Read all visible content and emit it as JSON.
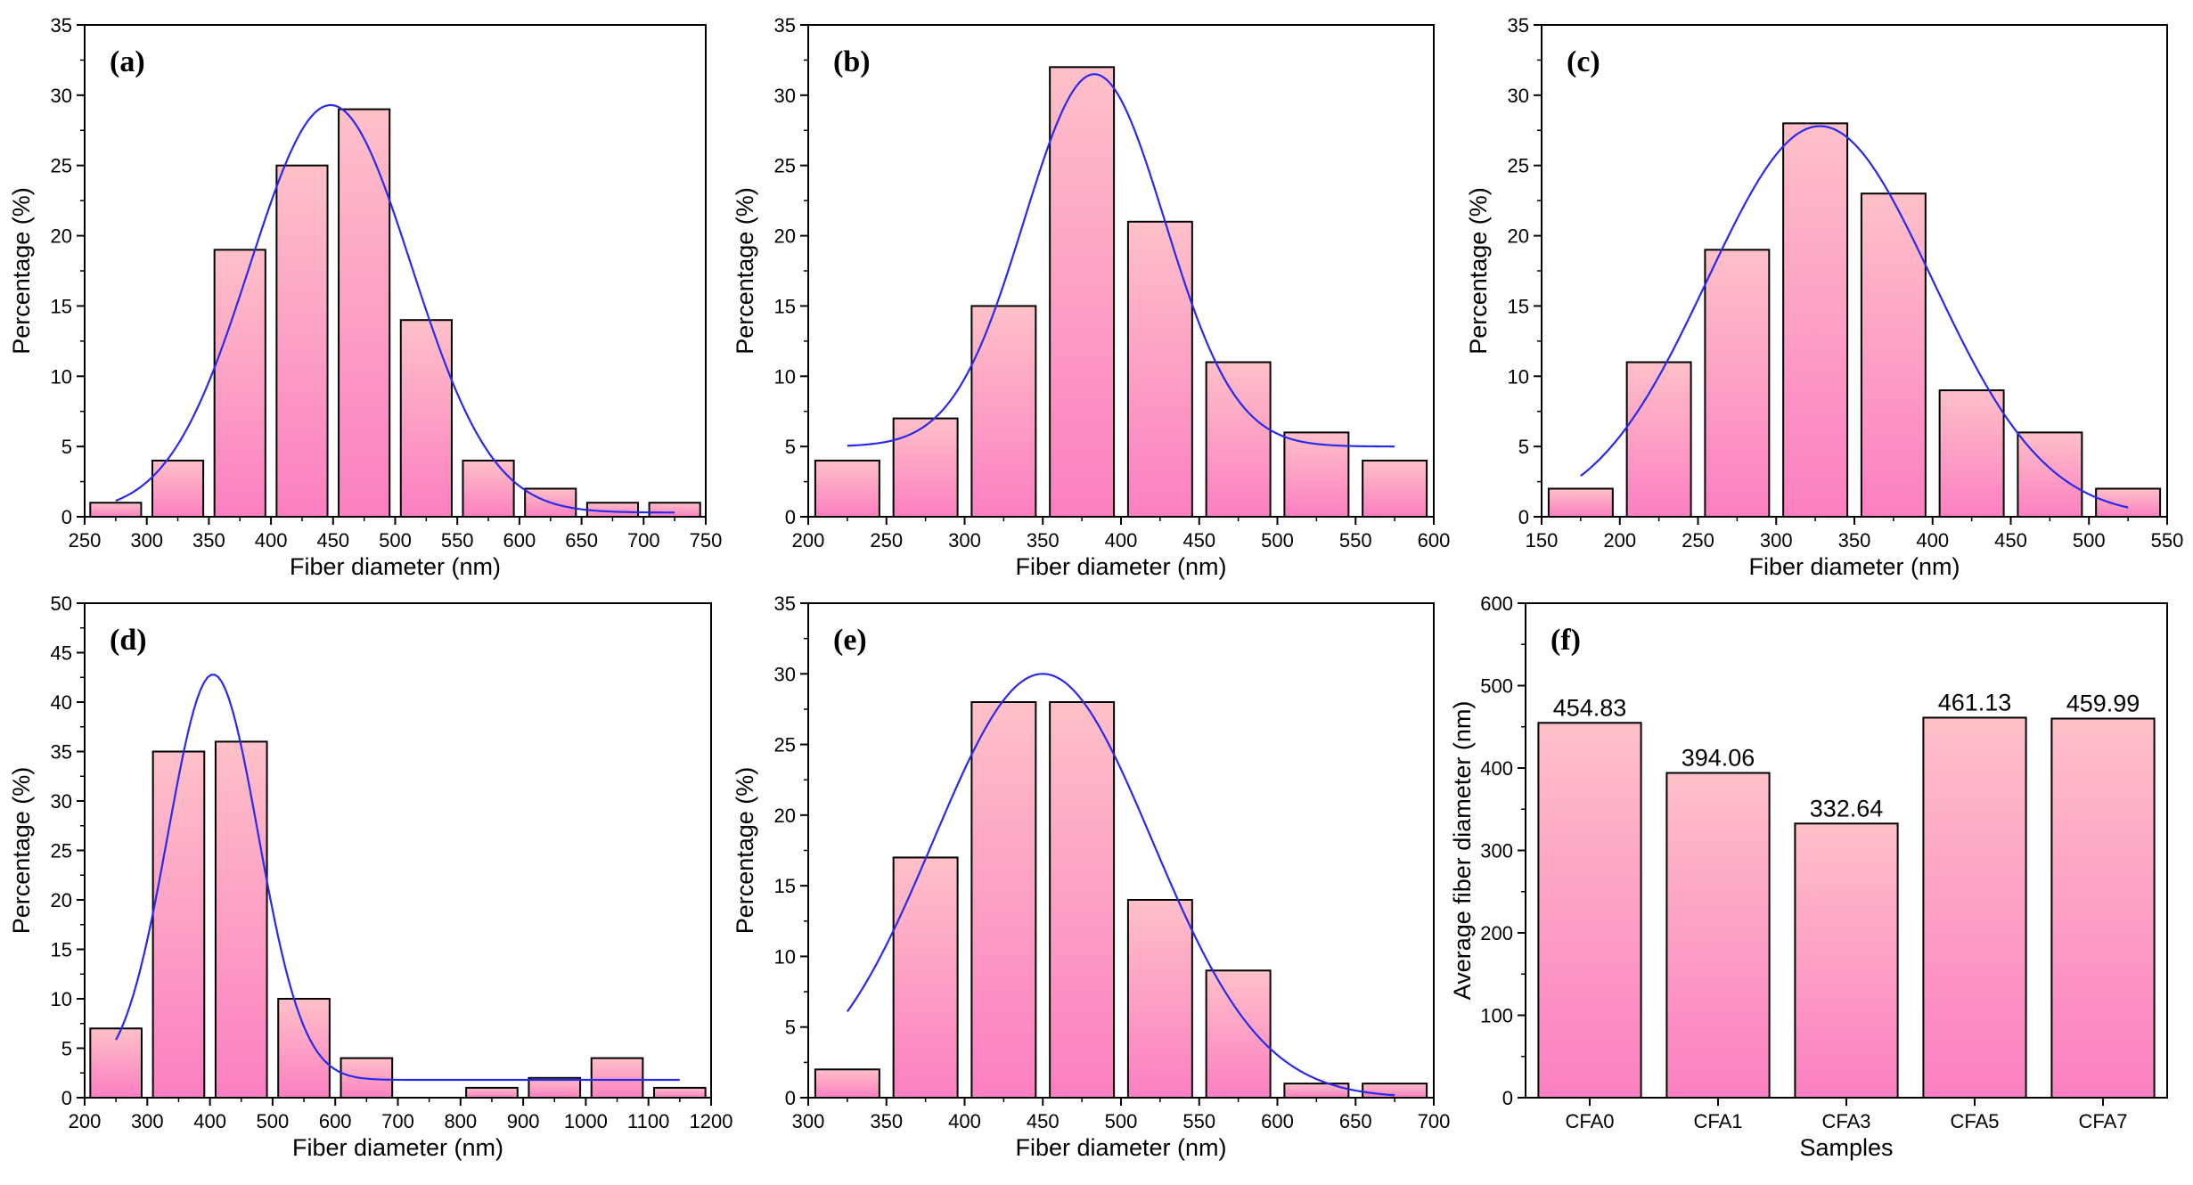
{
  "chart_data": [
    {
      "panel": "(a)",
      "type": "bar",
      "xlabel": "Fiber diameter (nm)",
      "ylabel": "Percentage (%)",
      "xlim": [
        250,
        750
      ],
      "ylim": [
        0,
        35
      ],
      "xticks": [
        250,
        300,
        350,
        400,
        450,
        500,
        550,
        600,
        650,
        700,
        750
      ],
      "yticks": [
        0,
        5,
        10,
        15,
        20,
        25,
        30,
        35
      ],
      "bin_width": 50,
      "bars": [
        {
          "x": 275,
          "y": 1
        },
        {
          "x": 325,
          "y": 4
        },
        {
          "x": 375,
          "y": 19
        },
        {
          "x": 425,
          "y": 25
        },
        {
          "x": 475,
          "y": 29
        },
        {
          "x": 525,
          "y": 14
        },
        {
          "x": 575,
          "y": 4
        },
        {
          "x": 625,
          "y": 2
        },
        {
          "x": 675,
          "y": 1
        },
        {
          "x": 725,
          "y": 1
        }
      ],
      "fit": {
        "type": "gaussian",
        "x_range": [
          275,
          725
        ],
        "y0": 0.3,
        "A": 29,
        "mu": 448,
        "sigma": 65
      }
    },
    {
      "panel": "(b)",
      "type": "bar",
      "xlabel": "Fiber diameter (nm)",
      "ylabel": "Percentage (%)",
      "xlim": [
        200,
        600
      ],
      "ylim": [
        0,
        35
      ],
      "xticks": [
        200,
        250,
        300,
        350,
        400,
        450,
        500,
        550,
        600
      ],
      "yticks": [
        0,
        5,
        10,
        15,
        20,
        25,
        30,
        35
      ],
      "bin_width": 50,
      "bars": [
        {
          "x": 225,
          "y": 4
        },
        {
          "x": 275,
          "y": 7
        },
        {
          "x": 325,
          "y": 15
        },
        {
          "x": 375,
          "y": 32
        },
        {
          "x": 425,
          "y": 21
        },
        {
          "x": 475,
          "y": 11
        },
        {
          "x": 525,
          "y": 6
        },
        {
          "x": 575,
          "y": 4
        }
      ],
      "fit": {
        "type": "gaussian",
        "x_range": [
          225,
          575
        ],
        "y0": 5,
        "A": 26.5,
        "mu": 383,
        "sigma": 45
      }
    },
    {
      "panel": "(c)",
      "type": "bar",
      "xlabel": "Fiber diameter (nm)",
      "ylabel": "Percentage (%)",
      "xlim": [
        150,
        550
      ],
      "ylim": [
        0,
        35
      ],
      "xticks": [
        150,
        200,
        250,
        300,
        350,
        400,
        450,
        500,
        550
      ],
      "yticks": [
        0,
        5,
        10,
        15,
        20,
        25,
        30,
        35
      ],
      "bin_width": 50,
      "bars": [
        {
          "x": 175,
          "y": 2
        },
        {
          "x": 225,
          "y": 11
        },
        {
          "x": 275,
          "y": 19
        },
        {
          "x": 325,
          "y": 28
        },
        {
          "x": 375,
          "y": 23
        },
        {
          "x": 425,
          "y": 9
        },
        {
          "x": 475,
          "y": 6
        },
        {
          "x": 525,
          "y": 2
        }
      ],
      "fit": {
        "type": "gaussian",
        "x_range": [
          175,
          525
        ],
        "y0": 0,
        "A": 27.8,
        "mu": 328,
        "sigma": 72
      }
    },
    {
      "panel": "(d)",
      "type": "bar",
      "xlabel": "Fiber diameter (nm)",
      "ylabel": "Percentage (%)",
      "xlim": [
        200,
        1200
      ],
      "ylim": [
        0,
        50
      ],
      "xticks": [
        200,
        300,
        400,
        500,
        600,
        700,
        800,
        900,
        1000,
        1100,
        1200
      ],
      "yticks": [
        0,
        5,
        10,
        15,
        20,
        25,
        30,
        35,
        40,
        45,
        50
      ],
      "bin_width": 100,
      "bars": [
        {
          "x": 250,
          "y": 7
        },
        {
          "x": 350,
          "y": 35
        },
        {
          "x": 450,
          "y": 36
        },
        {
          "x": 550,
          "y": 10
        },
        {
          "x": 650,
          "y": 4
        },
        {
          "x": 750,
          "y": 0
        },
        {
          "x": 850,
          "y": 1
        },
        {
          "x": 950,
          "y": 2
        },
        {
          "x": 1050,
          "y": 4
        },
        {
          "x": 1150,
          "y": 1
        }
      ],
      "fit": {
        "type": "gaussian",
        "x_range": [
          250,
          1150
        ],
        "y0": 1.8,
        "A": 41,
        "mu": 405,
        "sigma": 72
      }
    },
    {
      "panel": "(e)",
      "type": "bar",
      "xlabel": "Fiber diameter (nm)",
      "ylabel": "Percentage (%)",
      "xlim": [
        300,
        700
      ],
      "ylim": [
        0,
        35
      ],
      "xticks": [
        300,
        350,
        400,
        450,
        500,
        550,
        600,
        650,
        700
      ],
      "yticks": [
        0,
        5,
        10,
        15,
        20,
        25,
        30,
        35
      ],
      "bin_width": 50,
      "bars": [
        {
          "x": 325,
          "y": 2
        },
        {
          "x": 375,
          "y": 17
        },
        {
          "x": 425,
          "y": 28
        },
        {
          "x": 475,
          "y": 28
        },
        {
          "x": 525,
          "y": 14
        },
        {
          "x": 575,
          "y": 9
        },
        {
          "x": 625,
          "y": 1
        },
        {
          "x": 675,
          "y": 1
        }
      ],
      "fit": {
        "type": "gaussian",
        "x_range": [
          325,
          675
        ],
        "y0": 0,
        "A": 30,
        "mu": 450,
        "sigma": 70
      }
    },
    {
      "panel": "(f)",
      "type": "bar",
      "xlabel": "Samples",
      "ylabel": "Average fiber diameter (nm)",
      "ylim": [
        0,
        600
      ],
      "yticks": [
        0,
        100,
        200,
        300,
        400,
        500,
        600
      ],
      "categories": [
        "CFA0",
        "CFA1",
        "CFA3",
        "CFA5",
        "CFA7"
      ],
      "values": [
        454.83,
        394.06,
        332.64,
        461.13,
        459.99
      ],
      "value_labels": [
        "454.83",
        "394.06",
        "332.64",
        "461.13",
        "459.99"
      ]
    }
  ]
}
